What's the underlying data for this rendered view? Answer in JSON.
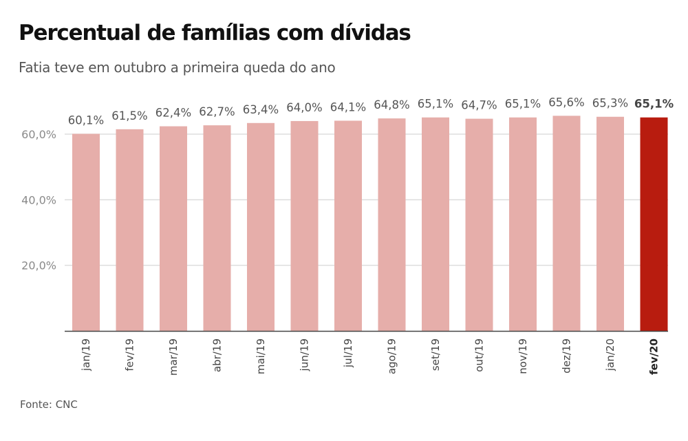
{
  "header": {
    "title": "Percentual de famílias com dívidas",
    "subtitle": "Fatia teve em outubro a primeira queda do ano"
  },
  "footer": {
    "source": "Fonte: CNC"
  },
  "colors": {
    "bar": "#e6aeaa",
    "highlight_bar": "#b81c0f",
    "gridline": "#dddddd",
    "axis": "#444444"
  },
  "chart_data": {
    "type": "bar",
    "title": "Percentual de famílias com dívidas",
    "subtitle": "Fatia teve em outubro a primeira queda do ano",
    "xlabel": "",
    "ylabel": "",
    "ylim": [
      0,
      60
    ],
    "yticks": [
      20,
      40,
      60
    ],
    "ytick_labels": [
      "20,0%",
      "40,0%",
      "60,0%"
    ],
    "grid": true,
    "categories": [
      "jan/19",
      "fev/19",
      "mar/19",
      "abr/19",
      "mai/19",
      "jun/19",
      "jul/19",
      "ago/19",
      "set/19",
      "out/19",
      "nov/19",
      "dez/19",
      "jan/20",
      "fev/20"
    ],
    "values": [
      60.1,
      61.5,
      62.4,
      62.7,
      63.4,
      64.0,
      64.1,
      64.8,
      65.1,
      64.7,
      65.1,
      65.6,
      65.3,
      65.1
    ],
    "value_labels": [
      "60,1%",
      "61,5%",
      "62,4%",
      "62,7%",
      "63,4%",
      "64,0%",
      "64,1%",
      "64,8%",
      "65,1%",
      "64,7%",
      "65,1%",
      "65,6%",
      "65,3%",
      "65,1%"
    ],
    "highlight_index": 13,
    "source": "Fonte: CNC"
  }
}
